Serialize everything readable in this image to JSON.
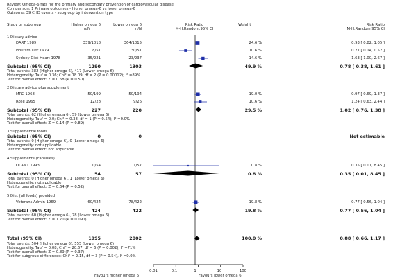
{
  "header": {
    "review": "Review:   Omega-6 fats for the primary and secondary prevention of cardiovascular disease",
    "comparison": "Comparison:   1 Primary outcomes - higher omega-6 vs lower omega-6",
    "outcome": "Outcome:   39 CHD events - subgroup by intervention type"
  },
  "columns": {
    "study": "Study or subgroup",
    "higher": "Higher omega 6",
    "higher_n": "n/N",
    "lower": "Lower omega 6",
    "lower_n": "n/N",
    "rr": "Risk Ratio",
    "rr_method": "M-H,Random,95% CI",
    "weight": "Weight",
    "rr2": "Risk Ratio",
    "rr2_method": "M-H,Random,95% CI"
  },
  "groups": [
    {
      "title": "1 Dietary advice",
      "studies": [
        {
          "name": "DART 1989",
          "hi": "339/1018",
          "lo": "364/1015",
          "weight": "24.6 %",
          "ci": "0.93 [ 0.82, 1.05 ]"
        },
        {
          "name": "Houtsmuller 1979",
          "hi": "8/51",
          "lo": "30/51",
          "weight": "10.6 %",
          "ci": "0.27 [ 0.14, 0.52 ]"
        },
        {
          "name": "Sydney Diet-Heart 1978",
          "hi": "35/221",
          "lo": "23/237",
          "weight": "14.6 %",
          "ci": "1.63 [ 1.00, 2.67 ]"
        }
      ],
      "subtotal": {
        "label": "Subtotal (95% CI)",
        "hi": "1290",
        "lo": "1303",
        "weight": "49.9 %",
        "ci": "0.78 [ 0.38, 1.61 ]"
      },
      "notes": [
        "Total events: 382 (Higher omega 6), 417 (Lower omega 6)",
        "Heterogeneity: Tau² = 0.36; Chi² = 18.09, df = 2 (P = 0.00012); I² =89%",
        "Test for overall effect: Z = 0.68 (P = 0.50)"
      ]
    },
    {
      "title": "2 Dietary advice plus supplement",
      "studies": [
        {
          "name": "MRC 1968",
          "hi": "50/199",
          "lo": "50/194",
          "weight": "19.0 %",
          "ci": "0.97 [ 0.69, 1.37 ]"
        },
        {
          "name": "Rose 1965",
          "hi": "12/28",
          "lo": "9/26",
          "weight": "10.6 %",
          "ci": "1.24 [ 0.63, 2.44 ]"
        }
      ],
      "subtotal": {
        "label": "Subtotal (95% CI)",
        "hi": "227",
        "lo": "220",
        "weight": "29.5 %",
        "ci": "1.02 [ 0.76, 1.38 ]"
      },
      "notes": [
        "Total events: 62 (Higher omega 6), 59 (Lower omega 6)",
        "Heterogeneity: Tau² = 0.0; Chi² = 0.38, df = 1 (P = 0.54); I² =0.0%",
        "Test for overall effect: Z = 0.14 (P = 0.89)"
      ]
    },
    {
      "title": "3 Supplemental foods",
      "studies": [],
      "subtotal": {
        "label": "Subtotal (95% CI)",
        "hi": "0",
        "lo": "0",
        "weight": "",
        "ci": "Not estimable"
      },
      "notes": [
        "Total events: 0 (Higher omega 6), 0 (Lower omega 6)",
        "Heterogeneity: not applicable",
        "Test for overall effect: not applicable"
      ]
    },
    {
      "title": "4 Supplements (capsules)",
      "studies": [
        {
          "name": "OLAMT 1993",
          "hi": "0/54",
          "lo": "1/57",
          "weight": "0.8 %",
          "ci": "0.35 [ 0.01, 8.45 ]"
        }
      ],
      "subtotal": {
        "label": "Subtotal (95% CI)",
        "hi": "54",
        "lo": "57",
        "weight": "0.8 %",
        "ci": "0.35 [ 0.01, 8.45 ]"
      },
      "notes": [
        "Total events: 0 (Higher omega 6), 1 (Lower omega 6)",
        "Heterogeneity: not applicable",
        "Test for overall effect: Z = 0.64 (P = 0.52)"
      ]
    },
    {
      "title": "5 Diet (all foods) provided",
      "studies": [
        {
          "name": "Veterans Admin 1969",
          "hi": "60/424",
          "lo": "78/422",
          "weight": "19.8 %",
          "ci": "0.77 [ 0.56, 1.04 ]"
        }
      ],
      "subtotal": {
        "label": "Subtotal (95% CI)",
        "hi": "424",
        "lo": "422",
        "weight": "19.8 %",
        "ci": "0.77 [ 0.56, 1.04 ]"
      },
      "notes": [
        "Total events: 60 (Higher omega 6), 78 (Lower omega 6)",
        "Test for overall effect: Z = 1.70 (P = 0.090)"
      ]
    }
  ],
  "total": {
    "label": "Total (95% CI)",
    "hi": "1995",
    "lo": "2002",
    "weight": "100.0 %",
    "ci": "0.88 [ 0.66, 1.17 ]",
    "notes": [
      "Total events: 504 (Higher omega 6), 555 (Lower omega 6)",
      "Heterogeneity: Tau² = 0.08; Chi² = 20.67, df = 6 (P = 0.002); I² =71%",
      "Test for overall effect: Z = 0.89 (P = 0.37)",
      "Test for subgroup differences: Chi² = 2.15, df = 3 (P = 0.54), I² =0.0%"
    ]
  },
  "axis": {
    "ticks": [
      "0.01",
      "0.1",
      "1",
      "10",
      "100"
    ],
    "left_label": "Favours higher omega 6",
    "right_label": "Favours lower omega 6"
  },
  "colors": {
    "study_marker": "#1f2fa8",
    "diamond": "#000000",
    "axis": "#000000"
  },
  "chart_data": {
    "type": "forest",
    "scale": "log",
    "xlim": [
      0.01,
      100
    ],
    "null_line": 1,
    "studies": [
      {
        "name": "DART 1989",
        "rr": 0.93,
        "lo": 0.82,
        "hi": 1.05,
        "weight": 24.6
      },
      {
        "name": "Houtsmuller 1979",
        "rr": 0.27,
        "lo": 0.14,
        "hi": 0.52,
        "weight": 10.6
      },
      {
        "name": "Sydney Diet-Heart 1978",
        "rr": 1.63,
        "lo": 1.0,
        "hi": 2.67,
        "weight": 14.6
      },
      {
        "name": "MRC 1968",
        "rr": 0.97,
        "lo": 0.69,
        "hi": 1.37,
        "weight": 19.0
      },
      {
        "name": "Rose 1965",
        "rr": 1.24,
        "lo": 0.63,
        "hi": 2.44,
        "weight": 10.6
      },
      {
        "name": "OLAMT 1993",
        "rr": 0.35,
        "lo": 0.01,
        "hi": 8.45,
        "weight": 0.8
      },
      {
        "name": "Veterans Admin 1969",
        "rr": 0.77,
        "lo": 0.56,
        "hi": 1.04,
        "weight": 19.8
      }
    ],
    "pooled": [
      {
        "name": "Subtotal 1 Dietary advice",
        "rr": 0.78,
        "lo": 0.38,
        "hi": 1.61
      },
      {
        "name": "Subtotal 2 Dietary advice plus supplement",
        "rr": 1.02,
        "lo": 0.76,
        "hi": 1.38
      },
      {
        "name": "Subtotal 4 Supplements (capsules)",
        "rr": 0.35,
        "lo": 0.01,
        "hi": 8.45
      },
      {
        "name": "Subtotal 5 Diet (all foods) provided",
        "rr": 0.77,
        "lo": 0.56,
        "hi": 1.04
      },
      {
        "name": "Total",
        "rr": 0.88,
        "lo": 0.66,
        "hi": 1.17
      }
    ]
  }
}
